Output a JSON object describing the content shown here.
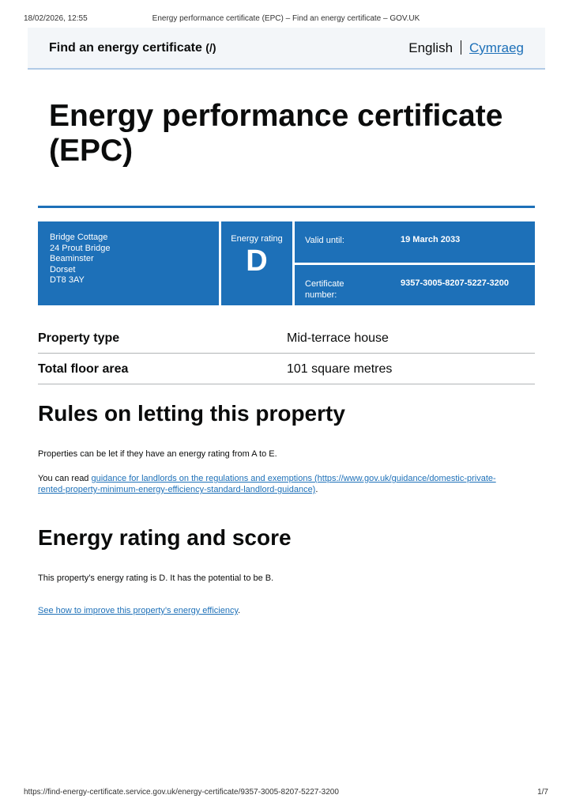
{
  "print_header": {
    "datetime": "18/02/2026, 12:55",
    "title": "Energy performance certificate (EPC) – Find an energy certificate – GOV.UK"
  },
  "header": {
    "service": "Find an energy certificate",
    "service_suffix": "(/)",
    "lang_current": "English",
    "lang_other": "Cymraeg"
  },
  "page_title": "Energy performance certificate (EPC)",
  "panel": {
    "address": [
      "Bridge Cottage",
      "24 Prout Bridge",
      "Beaminster",
      "Dorset",
      "DT8 3AY"
    ],
    "rating_label": "Energy rating",
    "rating": "D",
    "valid_label": "Valid until:",
    "valid_value": "19 March 2033",
    "cert_label": "Certificate number:",
    "cert_value": "9357-3005-8207-5227-3200",
    "color": "#1d70b8"
  },
  "summary": [
    {
      "key": "Property type",
      "value": "Mid-terrace house"
    },
    {
      "key": "Total floor area",
      "value": "101 square metres"
    }
  ],
  "letting": {
    "heading": "Rules on letting this property",
    "p1": "Properties can be let if they have an energy rating from A to E.",
    "p2_prefix": "You can read ",
    "p2_link": "guidance for landlords on the regulations and exemptions (https://www.gov.uk/guidance/domestic-private-rented-property-minimum-energy-efficiency-standard-landlord-guidance)",
    "p2_suffix": "."
  },
  "rating_section": {
    "heading": "Energy rating and score",
    "p1": "This property’s energy rating is D. It has the potential to be B.",
    "link": "See how to improve this property’s energy efficiency",
    "link_suffix": "."
  },
  "footer": {
    "url": "https://find-energy-certificate.service.gov.uk/energy-certificate/9357-3005-8207-5227-3200",
    "page": "1/7"
  }
}
